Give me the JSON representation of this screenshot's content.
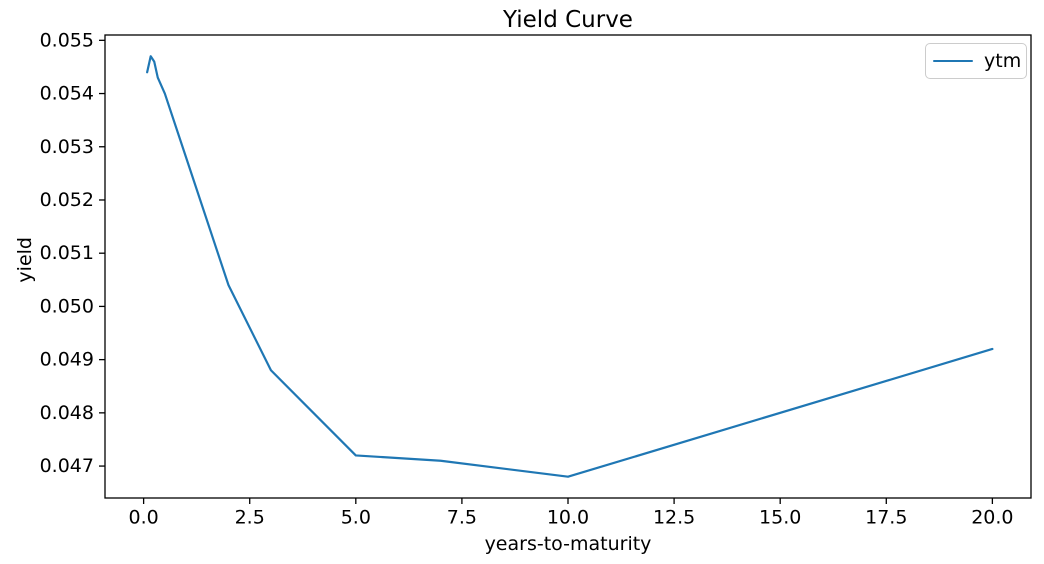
{
  "figure": {
    "title": "Yield Curve",
    "xlabel": "years-to-maturity",
    "ylabel": "yield",
    "legend": {
      "position": "upper right",
      "entries": [
        {
          "label": "ytm",
          "color": "#1f77b4"
        }
      ]
    }
  },
  "chart_data": {
    "type": "line",
    "title": "Yield Curve",
    "xlabel": "years-to-maturity",
    "ylabel": "yield",
    "grid": false,
    "legend_position": "upper right",
    "series": [
      {
        "name": "ytm",
        "color": "#1f77b4",
        "x": [
          0.083,
          0.167,
          0.25,
          0.333,
          0.5,
          1,
          2,
          3,
          5,
          7,
          10,
          20
        ],
        "y": [
          0.0544,
          0.0547,
          0.0546,
          0.0543,
          0.054,
          0.0528,
          0.0504,
          0.0488,
          0.0472,
          0.0471,
          0.0468,
          0.0492
        ]
      }
    ],
    "xlim": [
      -0.91,
      20.91
    ],
    "ylim": [
      0.0464,
      0.0551
    ],
    "xticks": [
      0.0,
      2.5,
      5.0,
      7.5,
      10.0,
      12.5,
      15.0,
      17.5,
      20.0
    ],
    "xtick_labels": [
      "0.0",
      "2.5",
      "5.0",
      "7.5",
      "10.0",
      "12.5",
      "15.0",
      "17.5",
      "20.0"
    ],
    "yticks": [
      0.047,
      0.048,
      0.049,
      0.05,
      0.051,
      0.052,
      0.053,
      0.054,
      0.055
    ],
    "ytick_labels": [
      "0.047",
      "0.048",
      "0.049",
      "0.050",
      "0.051",
      "0.052",
      "0.053",
      "0.054",
      "0.055"
    ]
  },
  "colors": {
    "line": "#1f77b4",
    "text": "#000000",
    "spine": "#000000",
    "legend_border": "#cccccc",
    "background": "#ffffff"
  }
}
